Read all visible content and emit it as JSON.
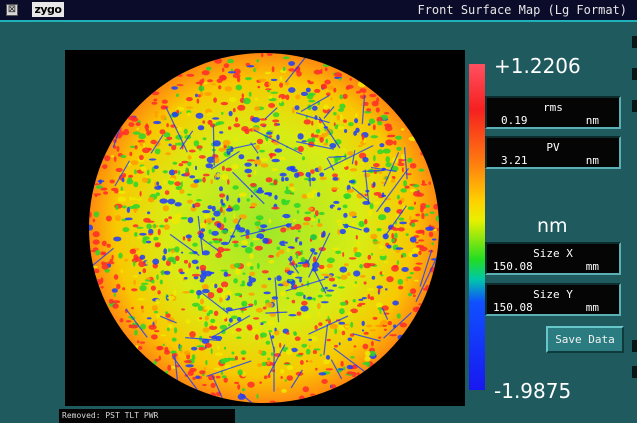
{
  "titlebar": {
    "close_icon": "window-close-box-icon",
    "logo": "zygo",
    "title": "Front Surface Map (Lg Format)"
  },
  "map": {
    "colormap_icon": "surface-height-map",
    "colors": {
      "high": "#ff2a2a",
      "upper": "#ff9d00",
      "mid": "#f0ea00",
      "green": "#2ad62a",
      "low": "#1a3cff",
      "background": "#000000"
    }
  },
  "scale": {
    "max": "+1.2206",
    "min": "-1.9875",
    "unit": "nm"
  },
  "stats": {
    "rms": {
      "label": "rms",
      "value": "0.19",
      "unit": "nm"
    },
    "pv": {
      "label": "PV",
      "value": "3.21",
      "unit": "nm"
    },
    "size_x": {
      "label": "Size X",
      "value": "150.08",
      "unit": "mm"
    },
    "size_y": {
      "label": "Size Y",
      "value": "150.08",
      "unit": "mm"
    }
  },
  "buttons": {
    "save_data": "Save Data"
  },
  "footer": {
    "removed": "Removed: PST TLT PWR"
  }
}
